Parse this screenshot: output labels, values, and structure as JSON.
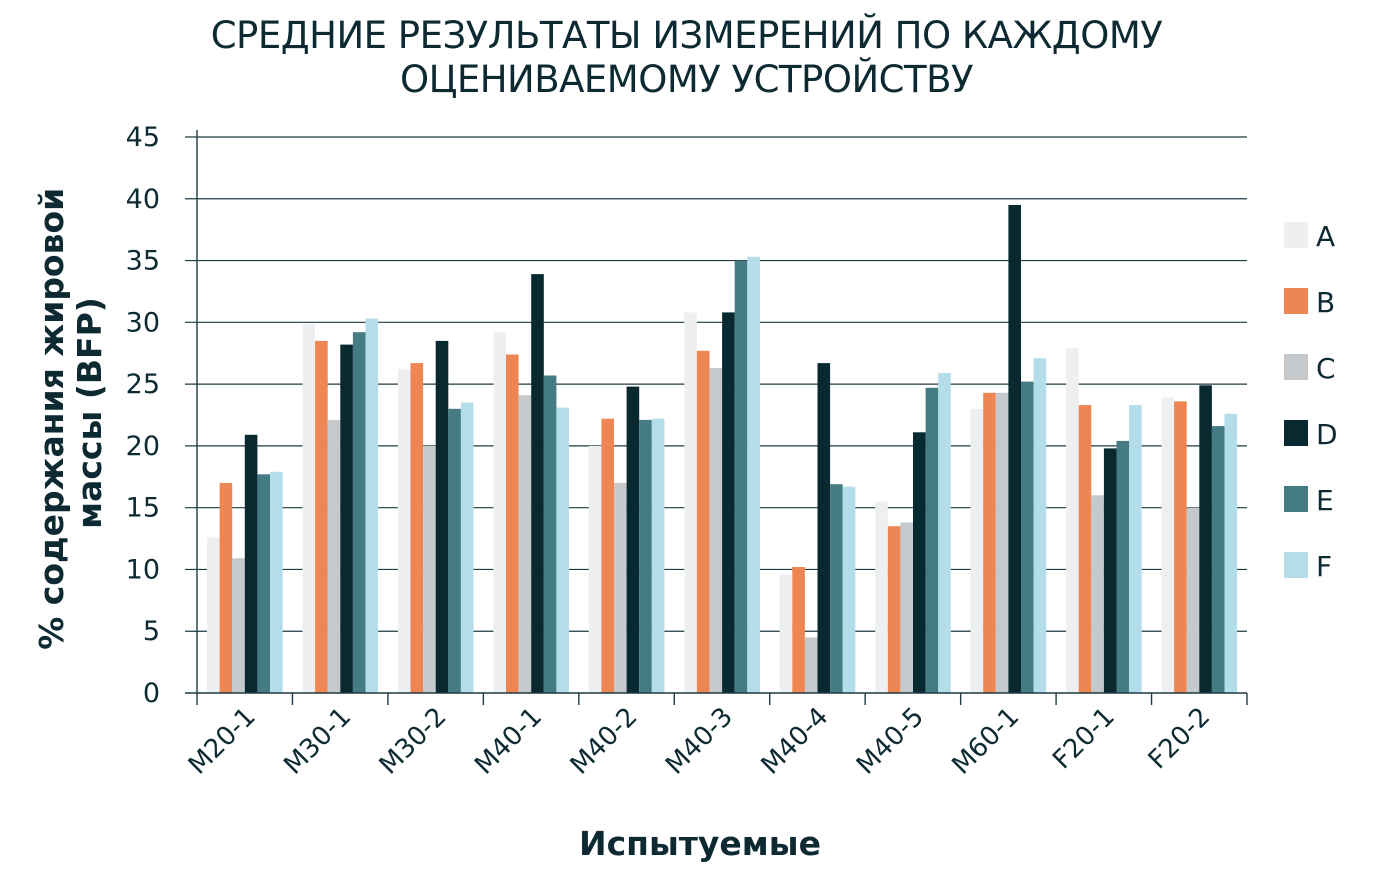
{
  "chart_data": {
    "type": "bar",
    "title_lines": [
      "СРЕДНИЕ РЕЗУЛЬТАТЫ ИЗМЕРЕНИЙ ПО КАЖДОМУ",
      "ОЦЕНИВАЕМОМУ УСТРОЙСТВУ"
    ],
    "xlabel": "Испытуемые",
    "ylabel_lines": [
      "% содержания жировой",
      "массы (BFP)"
    ],
    "ylim": [
      0,
      45
    ],
    "yticks": [
      0,
      5,
      10,
      15,
      20,
      25,
      30,
      35,
      40,
      45
    ],
    "grid": true,
    "legend_position": "right",
    "categories": [
      "M20-1",
      "M30-1",
      "M30-2",
      "M40-1",
      "M40-2",
      "M40-3",
      "M40-4",
      "M40-5",
      "M60-1",
      "F20-1",
      "F20-2"
    ],
    "series": [
      {
        "name": "A",
        "color": "#eeeff1",
        "values": [
          12.6,
          29.9,
          26.2,
          29.2,
          20.0,
          30.8,
          9.6,
          15.5,
          23.0,
          27.9,
          23.9
        ]
      },
      {
        "name": "B",
        "color": "#ee8654",
        "values": [
          17.0,
          28.5,
          26.7,
          27.4,
          22.2,
          27.7,
          10.2,
          13.5,
          24.3,
          23.3,
          23.6
        ]
      },
      {
        "name": "C",
        "color": "#c5c9cc",
        "values": [
          10.9,
          22.1,
          20.0,
          24.1,
          17.0,
          26.3,
          4.5,
          13.8,
          24.3,
          16.0,
          15.0
        ]
      },
      {
        "name": "D",
        "color": "#092930",
        "values": [
          20.9,
          28.2,
          28.5,
          33.9,
          24.8,
          30.8,
          26.7,
          21.1,
          39.5,
          19.8,
          24.9
        ]
      },
      {
        "name": "E",
        "color": "#457b83",
        "values": [
          17.7,
          29.2,
          23.0,
          25.7,
          22.1,
          35.0,
          16.9,
          24.7,
          25.2,
          20.4,
          21.6
        ]
      },
      {
        "name": "F",
        "color": "#b3dde8",
        "values": [
          17.9,
          30.3,
          23.5,
          23.1,
          22.2,
          35.3,
          16.7,
          25.9,
          27.1,
          23.3,
          22.6
        ]
      }
    ]
  }
}
